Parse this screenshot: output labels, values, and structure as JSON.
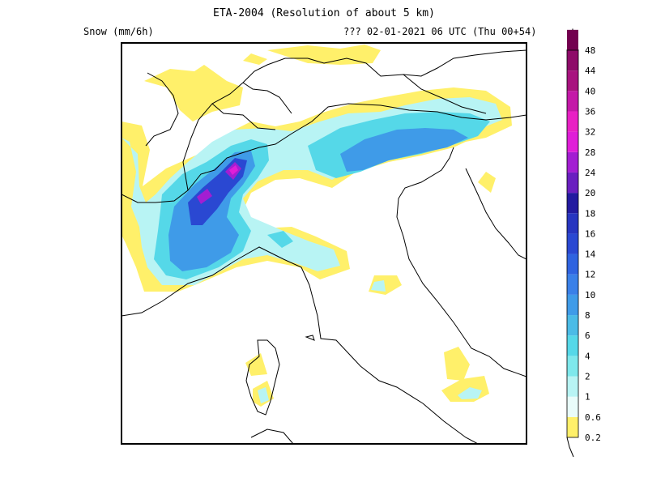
{
  "header": {
    "title": "ETA-2004 (Resolution of about 5 km)",
    "variable": "Snow (mm/6h)",
    "valid_time": "??? 02-01-2021 06 UTC (Thu 00+54)"
  },
  "legend": {
    "levels": [
      "0.2",
      "0.6",
      "1",
      "2",
      "4",
      "6",
      "8",
      "10",
      "12",
      "14",
      "16",
      "18",
      "20",
      "24",
      "28",
      "32",
      "36",
      "40",
      "44",
      "48"
    ],
    "colors": [
      "#fff06a",
      "#e9fcfa",
      "#b8f4f4",
      "#7ee8ec",
      "#55d8e8",
      "#4bbbe6",
      "#3f9be8",
      "#3a80e8",
      "#2f63e0",
      "#2a48d2",
      "#2735c0",
      "#231aa0",
      "#6a1fc0",
      "#a31ed2",
      "#e01ed8",
      "#e821c4",
      "#c418a8",
      "#a8127f",
      "#8e0b69",
      "#73004f"
    ]
  },
  "colors": {
    "frame": "#000000",
    "coastline": "#000000",
    "background": "#ffffff"
  }
}
